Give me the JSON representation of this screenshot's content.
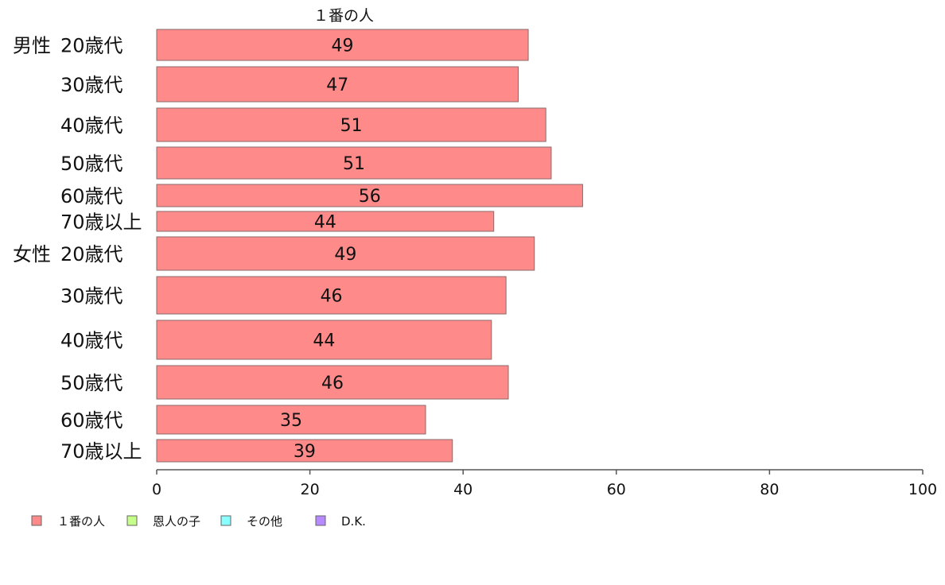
{
  "chart_data": {
    "type": "bar",
    "orientation": "horizontal",
    "title": "",
    "series_title": "１番の人",
    "xlim": [
      0,
      100
    ],
    "ticks": [
      0,
      20,
      40,
      60,
      80,
      100
    ],
    "groups": [
      {
        "name": "男性",
        "categories": [
          "20歳代",
          "30歳代",
          "40歳代",
          "50歳代",
          "60歳代",
          "70歳以上"
        ],
        "values": [
          48.5,
          47.2,
          50.8,
          51.5,
          55.6,
          44.0
        ],
        "labels": [
          "49",
          "47",
          "51",
          "51",
          "56",
          "44"
        ]
      },
      {
        "name": "女性",
        "categories": [
          "20歳代",
          "30歳代",
          "40歳代",
          "50歳代",
          "60歳代",
          "70歳以上"
        ],
        "values": [
          49.3,
          45.6,
          43.7,
          45.9,
          35.1,
          38.6
        ],
        "labels": [
          "49",
          "46",
          "44",
          "46",
          "35",
          "39"
        ]
      }
    ],
    "legend": [
      {
        "label": "１番の人",
        "color": "#ff8a8a"
      },
      {
        "label": "恩人の子",
        "color": "#c6ff8a"
      },
      {
        "label": "その他",
        "color": "#8affff"
      },
      {
        "label": "D.K.",
        "color": "#b88aff"
      }
    ],
    "legend_position": "bottom-left",
    "colors": {
      "bar": "#ff8a8a"
    },
    "grid": false
  }
}
